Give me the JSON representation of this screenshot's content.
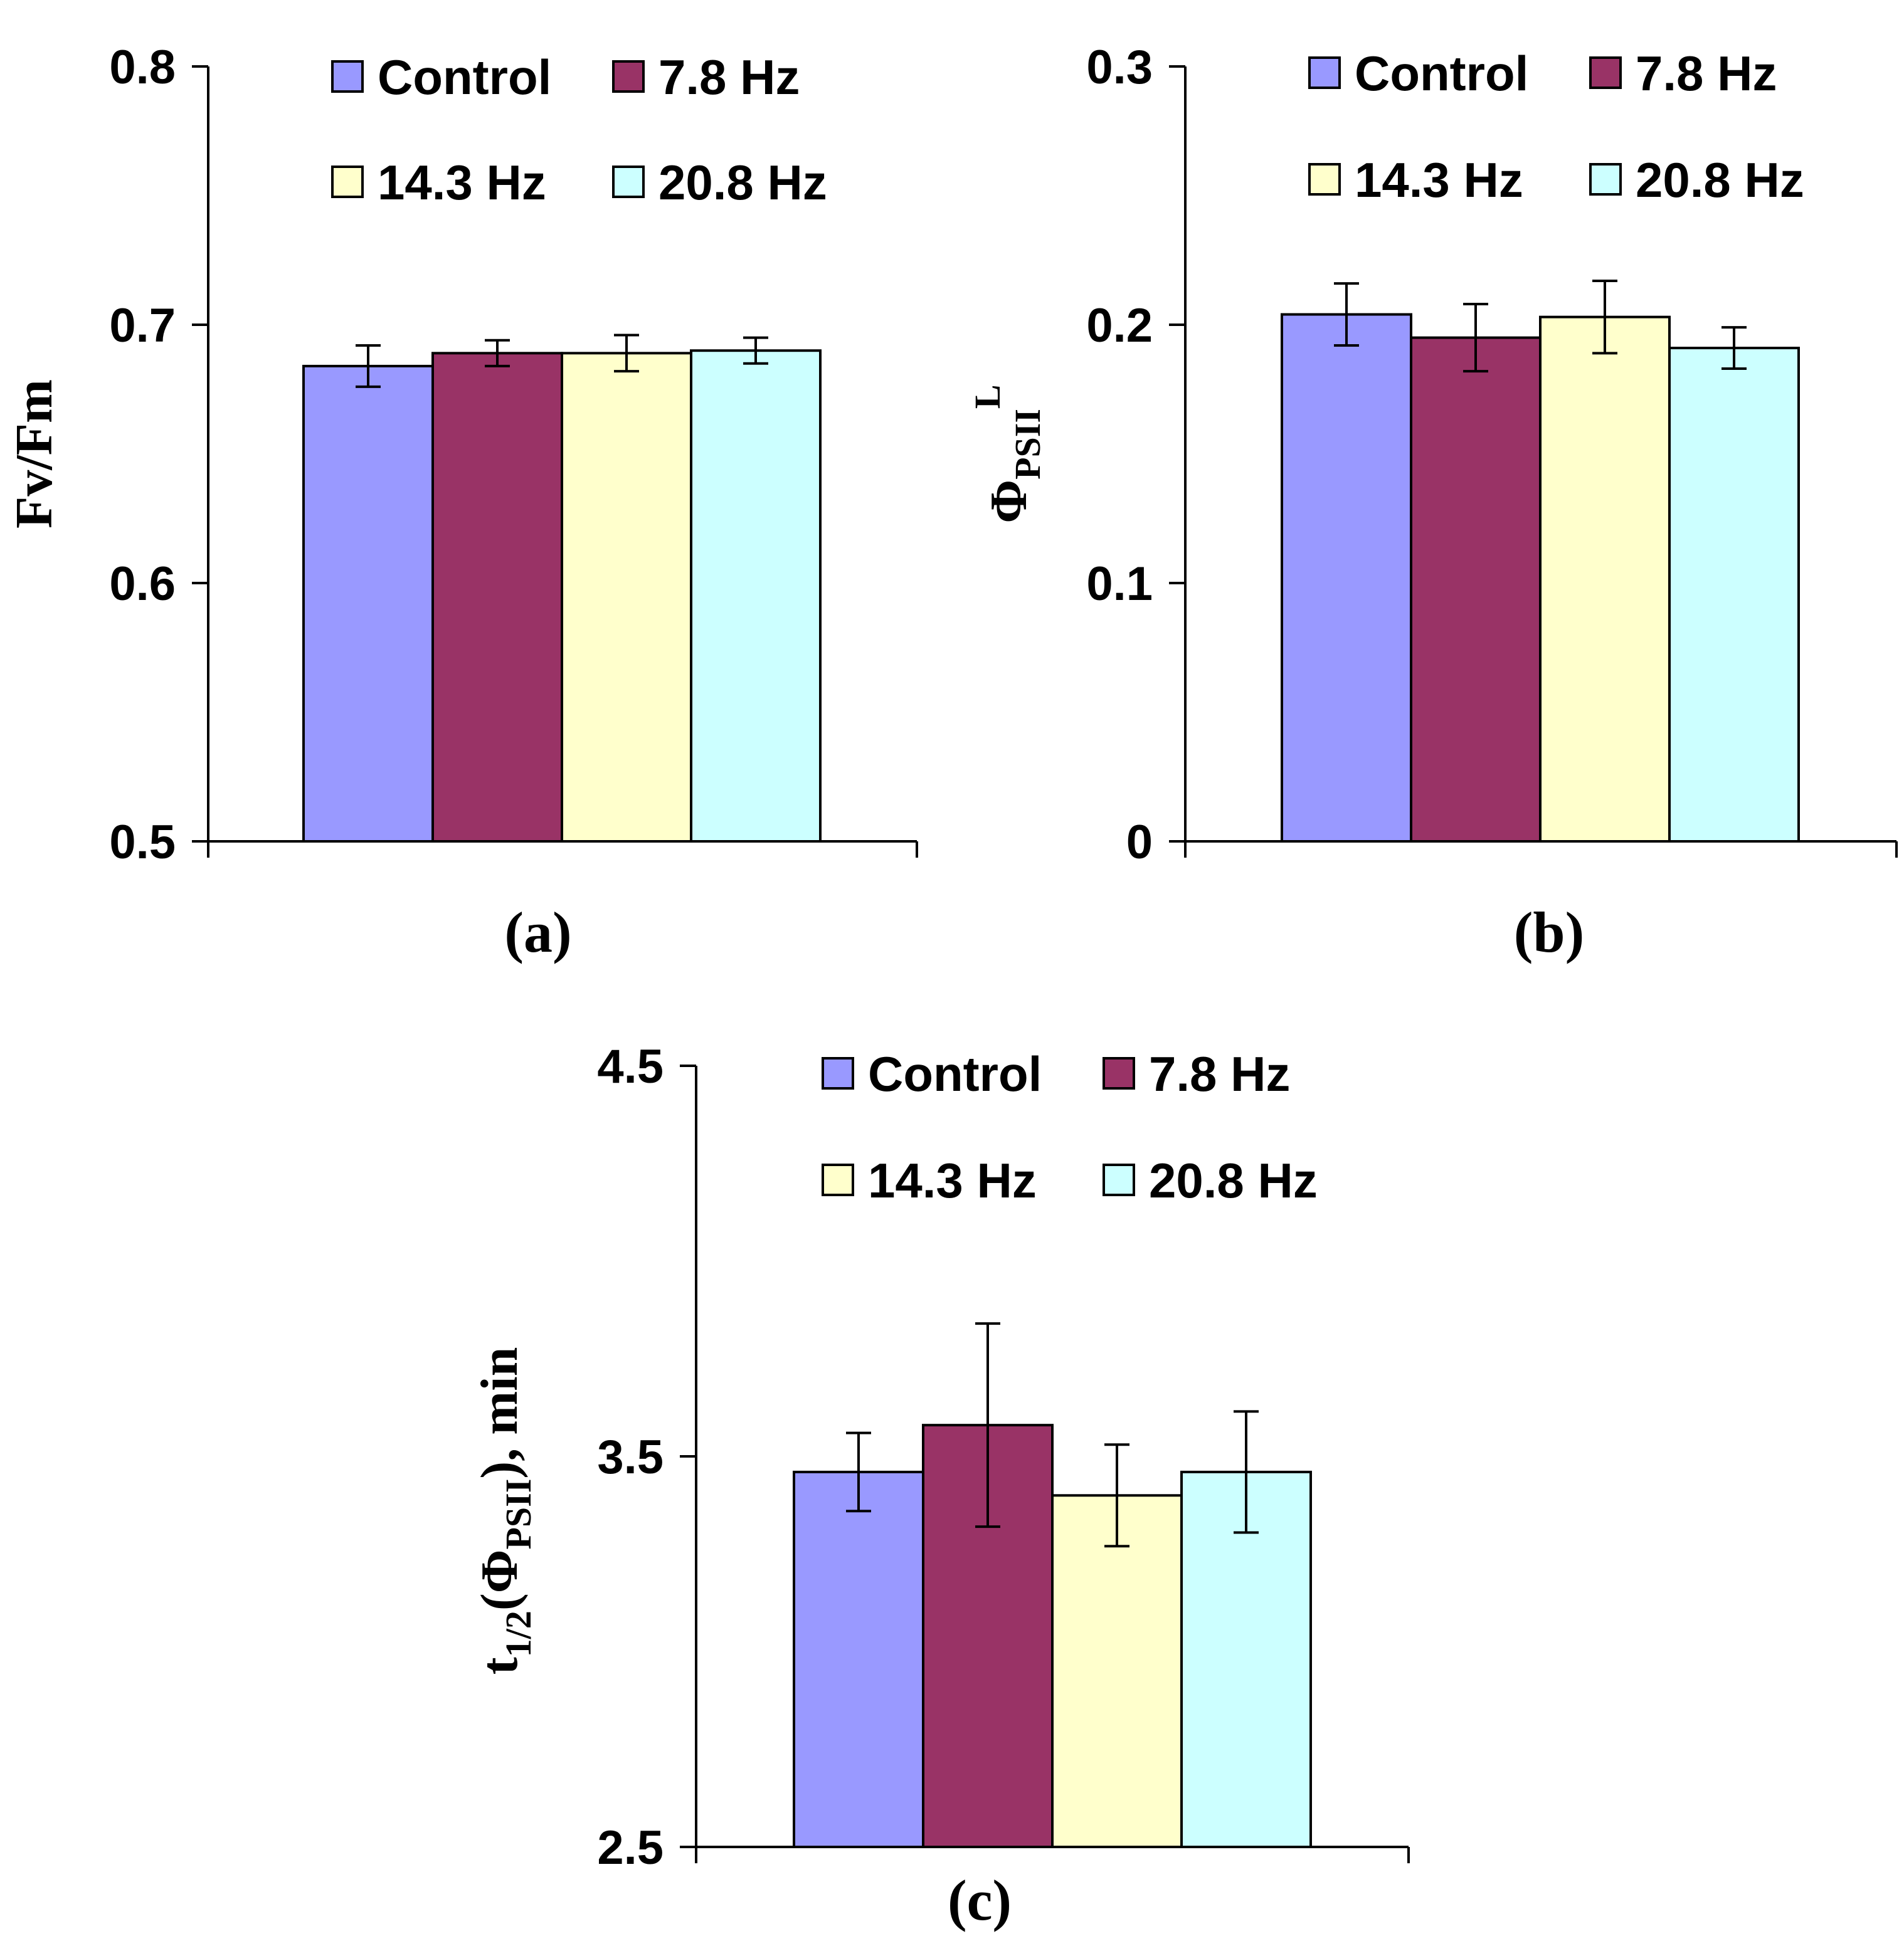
{
  "chart_data": [
    {
      "type": "bar",
      "panel_label": "(a)",
      "ylabel": {
        "main": "Fv/Fm",
        "sub": "",
        "sup": "",
        "suffix": ""
      },
      "ylim": [
        0.5,
        0.8
      ],
      "yticks": [
        "0.5",
        "0.6",
        "0.7",
        "0.8"
      ],
      "grid": false,
      "legend_position": "top",
      "series": [
        {
          "name": "Control",
          "value": 0.684,
          "error": 0.008,
          "color": "#9999ff"
        },
        {
          "name": "7.8 Hz",
          "value": 0.689,
          "error": 0.005,
          "color": "#993366"
        },
        {
          "name": "14.3 Hz",
          "value": 0.689,
          "error": 0.007,
          "color": "#ffffcc"
        },
        {
          "name": "20.8 Hz",
          "value": 0.69,
          "error": 0.005,
          "color": "#ccffff"
        }
      ]
    },
    {
      "type": "bar",
      "panel_label": "(b)",
      "ylabel": {
        "main": "Φ",
        "sub": "PSII",
        "sup": "L",
        "suffix": ""
      },
      "ylim": [
        0,
        0.3
      ],
      "yticks": [
        "0",
        "0.1",
        "0.2",
        "0.3"
      ],
      "grid": false,
      "legend_position": "top",
      "series": [
        {
          "name": "Control",
          "value": 0.204,
          "error": 0.012,
          "color": "#9999ff"
        },
        {
          "name": "7.8 Hz",
          "value": 0.195,
          "error": 0.013,
          "color": "#993366"
        },
        {
          "name": "14.3 Hz",
          "value": 0.203,
          "error": 0.014,
          "color": "#ffffcc"
        },
        {
          "name": "20.8 Hz",
          "value": 0.191,
          "error": 0.008,
          "color": "#ccffff"
        }
      ]
    },
    {
      "type": "bar",
      "panel_label": "(c)",
      "ylabel": {
        "main": "t",
        "sub": "1/2",
        "inner": "(Φ",
        "inner_sub": "PSII",
        "suffix": "), min"
      },
      "ylim": [
        2.5,
        4.5
      ],
      "yticks": [
        "2.5",
        "3.5",
        "4.5"
      ],
      "grid": false,
      "legend_position": "top",
      "series": [
        {
          "name": "Control",
          "value": 3.46,
          "error": 0.1,
          "color": "#9999ff"
        },
        {
          "name": "7.8 Hz",
          "value": 3.58,
          "error": 0.26,
          "color": "#993366"
        },
        {
          "name": "14.3 Hz",
          "value": 3.4,
          "error": 0.13,
          "color": "#ffffcc"
        },
        {
          "name": "20.8 Hz",
          "value": 3.46,
          "error": 0.155,
          "color": "#ccffff"
        }
      ]
    }
  ]
}
